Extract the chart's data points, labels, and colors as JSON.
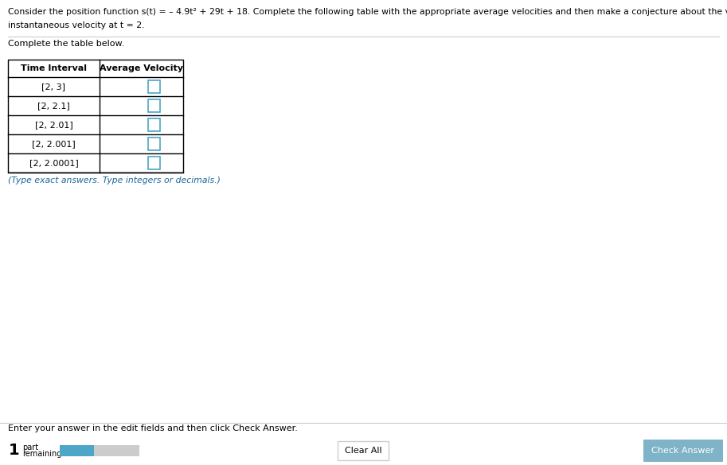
{
  "title_line1": "Consider the position function s(t) = – 4.9t² + 29t + 18. Complete the following table with the appropriate average velocities and then make a conjecture about the value of the",
  "title_line2": "instantaneous velocity at t = 2.",
  "subtitle": "Complete the table below.",
  "col_headers": [
    "Time Interval",
    "Average Velocity"
  ],
  "rows": [
    "[2, 3]",
    "[2, 2.1]",
    "[2, 2.01]",
    "[2, 2.001]",
    "[2, 2.0001]"
  ],
  "note": "(Type exact answers. Type integers or decimals.)",
  "footer_text": "Enter your answer in the edit fields and then click Check Answer.",
  "part_label": "1",
  "part_text1": "part",
  "part_text2": "remaining",
  "clear_btn": "Clear All",
  "check_btn": "Check Answer",
  "bg_color": "#ffffff",
  "table_border_color": "#000000",
  "cell_bg": "#ffffff",
  "input_box_color": "#4da6c8",
  "note_color": "#1a6699",
  "title_color": "#000000",
  "footer_color": "#000000",
  "btn_check_bg": "#7fb3c8",
  "btn_clear_bg": "#ffffff",
  "progress_blue": "#4da6c8",
  "progress_gray": "#cccccc",
  "separator_color": "#cccccc"
}
